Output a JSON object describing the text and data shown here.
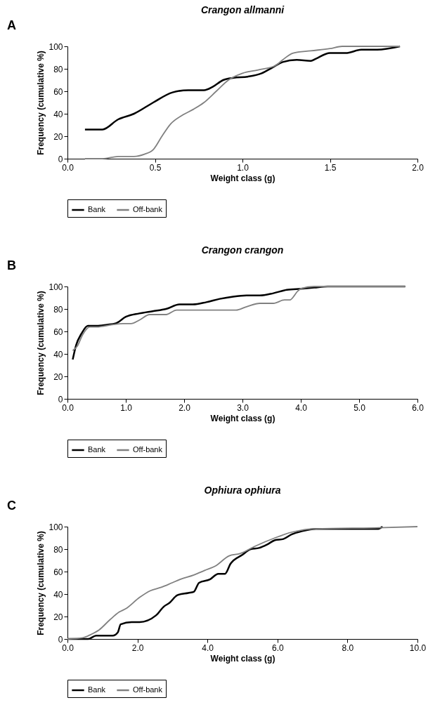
{
  "chart_data": [
    {
      "type": "line",
      "title": "Crangon allmanni",
      "xlabel": "Weight class (g)",
      "ylabel": "Frequency (cumulative %)",
      "annotations": [
        "A"
      ],
      "legend": "bottom",
      "grid": false,
      "marker": "none",
      "xlim": [
        0,
        2
      ],
      "xticks": [
        {
          "value": 0,
          "label": "0.0"
        },
        0.5,
        {
          "value": 1,
          "label": "1.0"
        },
        1.5,
        {
          "value": 2,
          "label": "2.0"
        }
      ],
      "ylim": [
        0,
        100
      ],
      "yticks": [
        0,
        20,
        40,
        60,
        80,
        100
      ],
      "series": [
        {
          "name": "Bank",
          "color": "#000000",
          "x": [
            0.1,
            0.2,
            0.29,
            0.38,
            0.49,
            0.6,
            0.69,
            0.78,
            0.83,
            0.89,
            0.95,
            1.03,
            1.11,
            1.17,
            1.23,
            1.31,
            1.39,
            1.42,
            1.5,
            1.59,
            1.68,
            1.77,
            1.9
          ],
          "values": [
            26,
            26,
            35,
            40,
            50,
            59,
            61,
            61,
            64,
            70,
            72,
            73,
            76,
            81,
            86,
            88,
            87,
            89,
            94,
            94,
            97,
            97,
            100
          ]
        },
        {
          "name": "Off-bank",
          "color": "#808080",
          "x": [
            0.1,
            0.2,
            0.29,
            0.38,
            0.44,
            0.49,
            0.54,
            0.59,
            0.66,
            0.72,
            0.78,
            0.85,
            0.92,
            1.0,
            1.09,
            1.19,
            1.23,
            1.29,
            1.39,
            1.5,
            1.57,
            1.9
          ],
          "values": [
            0,
            0,
            2,
            2,
            4,
            8,
            20,
            31,
            39,
            44,
            50,
            60,
            70,
            76,
            79,
            83,
            88,
            94,
            96,
            98,
            100,
            100
          ]
        }
      ]
    },
    {
      "type": "line",
      "title": "Crangon crangon",
      "xlabel": "Weight class (g)",
      "ylabel": "Frequency (cumulative %)",
      "annotations": [
        "B"
      ],
      "legend": "bottom",
      "grid": false,
      "marker": "none",
      "xlim": [
        0,
        6
      ],
      "xticks": [
        {
          "value": 0,
          "label": "0.0"
        },
        {
          "value": 1,
          "label": "1.0"
        },
        {
          "value": 2,
          "label": "2.0"
        },
        {
          "value": 3,
          "label": "3.0"
        },
        {
          "value": 4,
          "label": "4.0"
        },
        {
          "value": 5,
          "label": "5.0"
        },
        {
          "value": 6,
          "label": "6.0"
        }
      ],
      "ylim": [
        0,
        100
      ],
      "yticks": [
        0,
        20,
        40,
        60,
        80,
        100
      ],
      "series": [
        {
          "name": "Bank",
          "color": "#000000",
          "x": [
            0.09,
            0.15,
            0.24,
            0.35,
            0.5,
            0.68,
            0.82,
            1.0,
            1.23,
            1.46,
            1.69,
            1.92,
            2.15,
            2.38,
            2.61,
            2.84,
            3.07,
            3.3,
            3.53,
            3.76,
            4.0,
            4.23,
            4.46,
            5.79
          ],
          "values": [
            35,
            48,
            58,
            65,
            65,
            66,
            67,
            73,
            76,
            78,
            80,
            84,
            84,
            86,
            89,
            91,
            92,
            92,
            94,
            97,
            98,
            99,
            100,
            100
          ]
        },
        {
          "name": "Off-bank",
          "color": "#808080",
          "x": [
            0.09,
            0.17,
            0.26,
            0.38,
            0.5,
            0.77,
            0.95,
            1.09,
            1.23,
            1.41,
            1.69,
            1.87,
            2.15,
            2.61,
            2.89,
            3.07,
            3.3,
            3.53,
            3.72,
            3.81,
            3.95,
            4.0,
            4.23,
            5.79
          ],
          "values": [
            43,
            47,
            57,
            64,
            64,
            66,
            67,
            67,
            70,
            75,
            75,
            79,
            79,
            79,
            79,
            82,
            85,
            85,
            88,
            88,
            96,
            98,
            100,
            100
          ]
        }
      ]
    },
    {
      "type": "line",
      "title": "Ophiura ophiura",
      "xlabel": "Weight class (g)",
      "ylabel": "Frequency (cumulative %)",
      "annotations": [
        "C"
      ],
      "legend": "bottom",
      "grid": false,
      "marker": "none",
      "xlim": [
        0,
        10
      ],
      "xticks": [
        {
          "value": 0,
          "label": "0.0"
        },
        {
          "value": 2,
          "label": "2.0"
        },
        {
          "value": 4,
          "label": "4.0"
        },
        {
          "value": 6,
          "label": "6.0"
        },
        {
          "value": 8,
          "label": "8.0"
        },
        {
          "value": 10,
          "label": "10.0"
        }
      ],
      "ylim": [
        0,
        100
      ],
      "yticks": [
        0,
        20,
        40,
        60,
        80,
        100
      ],
      "series": [
        {
          "name": "Bank",
          "color": "#000000",
          "x": [
            0,
            0.59,
            0.82,
            1.29,
            1.44,
            1.52,
            1.83,
            2.06,
            2.53,
            2.76,
            2.91,
            3.14,
            3.45,
            3.61,
            3.76,
            4.07,
            4.31,
            4.5,
            4.66,
            5.0,
            5.24,
            5.47,
            5.7,
            5.93,
            6.17,
            6.4,
            6.71,
            7.1,
            7.48,
            8.88,
            9.0
          ],
          "values": [
            0,
            0,
            3,
            3,
            6,
            13,
            15,
            15,
            21,
            29,
            32,
            39,
            41,
            42,
            50,
            53,
            58,
            58,
            67,
            75,
            80,
            81,
            84,
            88,
            89,
            93,
            96,
            98,
            98,
            98,
            100
          ]
        },
        {
          "name": "Off-bank",
          "color": "#808080",
          "x": [
            0,
            0.43,
            0.67,
            0.9,
            1.21,
            1.48,
            1.67,
            2.06,
            2.37,
            2.68,
            2.99,
            3.22,
            3.61,
            3.92,
            4.23,
            4.62,
            4.93,
            5.39,
            5.93,
            6.4,
            6.71,
            7.1,
            8.88,
            10
          ],
          "values": [
            0,
            1,
            4,
            8,
            17,
            24,
            27,
            37,
            43,
            46,
            50,
            53,
            57,
            61,
            65,
            74,
            76,
            83,
            90,
            95,
            97,
            98,
            99,
            100
          ]
        }
      ]
    }
  ]
}
